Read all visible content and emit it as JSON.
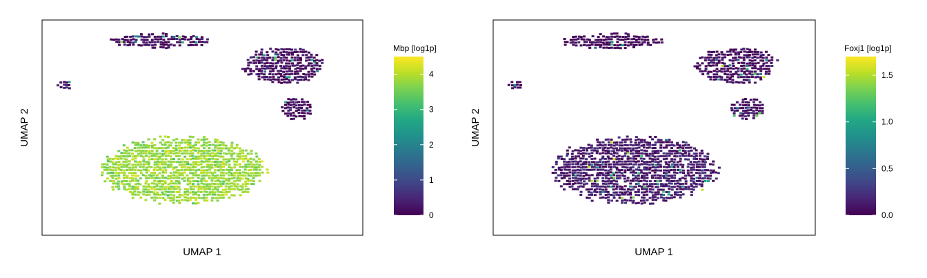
{
  "colors": {
    "viridis": [
      "#440154",
      "#482475",
      "#414487",
      "#355f8d",
      "#2a788e",
      "#21918c",
      "#22a884",
      "#44bf70",
      "#7ad151",
      "#bddf26",
      "#fde725"
    ],
    "axis": "#000000",
    "background": "#ffffff"
  },
  "chart_data": [
    {
      "type": "scatter",
      "title": "",
      "xlabel": "UMAP 1",
      "ylabel": "UMAP 2",
      "grid": false,
      "colorbar": {
        "title": "Mbp [log1p]",
        "range": [
          0,
          4.5
        ],
        "ticks": [
          0,
          1,
          2,
          3,
          4
        ],
        "tick_labels": [
          "0",
          "1",
          "2",
          "3",
          "4"
        ]
      },
      "clusters": [
        {
          "name": "",
          "center": [
            2.0,
            9.2
          ],
          "spread": [
            2.2,
            0.4
          ],
          "mean_expression": 0.1
        },
        {
          "name": "",
          "center": [
            -2.9,
            6.3
          ],
          "spread": [
            0.3,
            0.25
          ],
          "mean_expression": 0.3
        },
        {
          "name": "",
          "center": [
            8.4,
            7.6
          ],
          "spread": [
            1.7,
            1.0
          ],
          "mean_expression": 0.15
        },
        {
          "name": "",
          "center": [
            9.0,
            4.8
          ],
          "spread": [
            0.7,
            0.6
          ],
          "mean_expression": 0.15
        },
        {
          "name": "",
          "center": [
            3.2,
            0.8
          ],
          "spread": [
            3.5,
            1.8
          ],
          "mean_expression": 3.8
        }
      ]
    },
    {
      "type": "scatter",
      "title": "",
      "xlabel": "UMAP 1",
      "ylabel": "UMAP 2",
      "grid": false,
      "colorbar": {
        "title": "Foxj1 [log1p]",
        "range": [
          0,
          1.7
        ],
        "ticks": [
          0,
          0.5,
          1.0,
          1.5
        ],
        "tick_labels": [
          "0.0",
          "0.5",
          "1.0",
          "1.5"
        ]
      },
      "clusters": [
        {
          "name": "",
          "center": [
            2.0,
            9.2
          ],
          "spread": [
            2.2,
            0.4
          ],
          "mean_expression": 0.02
        },
        {
          "name": "",
          "center": [
            -2.9,
            6.3
          ],
          "spread": [
            0.3,
            0.25
          ],
          "mean_expression": 0.02
        },
        {
          "name": "",
          "center": [
            8.4,
            7.6
          ],
          "spread": [
            1.7,
            1.0
          ],
          "mean_expression": 0.04
        },
        {
          "name": "",
          "center": [
            9.0,
            4.8
          ],
          "spread": [
            0.7,
            0.6
          ],
          "mean_expression": 0.05
        },
        {
          "name": "",
          "center": [
            3.2,
            0.8
          ],
          "spread": [
            3.5,
            1.8
          ],
          "mean_expression": 0.12
        }
      ]
    }
  ]
}
